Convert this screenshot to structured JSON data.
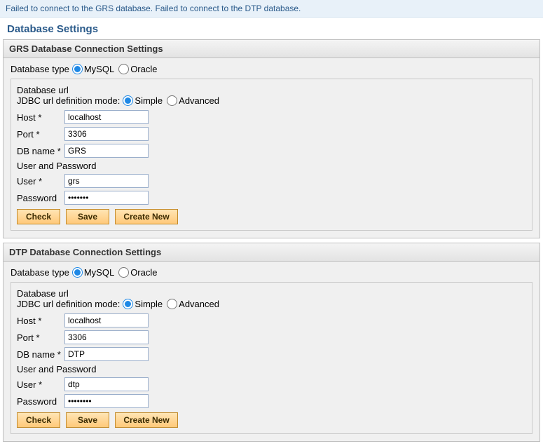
{
  "error_message": "Failed to connect to the GRS database. Failed to connect to the DTP database.",
  "page_title": "Database Settings",
  "db_type_label": "Database type",
  "db_type_options": {
    "mysql": "MySQL",
    "oracle": "Oracle"
  },
  "url_group_label": "Database url",
  "jdbc_mode_label": "JDBC url definition mode:",
  "jdbc_mode_options": {
    "simple": "Simple",
    "advanced": "Advanced"
  },
  "field_labels": {
    "host": "Host *",
    "port": "Port *",
    "dbname": "DB name *",
    "userpass_group": "User and Password",
    "user": "User *",
    "password": "Password"
  },
  "buttons": {
    "check": "Check",
    "save": "Save",
    "create_new": "Create New"
  },
  "grs": {
    "section_title": "GRS Database Connection Settings",
    "db_type": "mysql",
    "jdbc_mode": "simple",
    "host": "localhost",
    "port": "3306",
    "dbname": "GRS",
    "user": "grs",
    "password": "•••••••"
  },
  "dtp": {
    "section_title": "DTP Database Connection Settings",
    "db_type": "mysql",
    "jdbc_mode": "simple",
    "host": "localhost",
    "port": "3306",
    "dbname": "DTP",
    "user": "dtp",
    "password": "••••••••"
  },
  "colors": {
    "banner_bg": "#e8f1f9",
    "banner_text": "#2a5a8a",
    "section_border": "#bfbfbf",
    "body_bg": "#f0f0f0",
    "input_border": "#9aaecb",
    "button_bg_top": "#ffe5b4",
    "button_bg_bottom": "#ffc97a",
    "button_border": "#c28a2a",
    "radio_accent": "#1e88e5"
  }
}
